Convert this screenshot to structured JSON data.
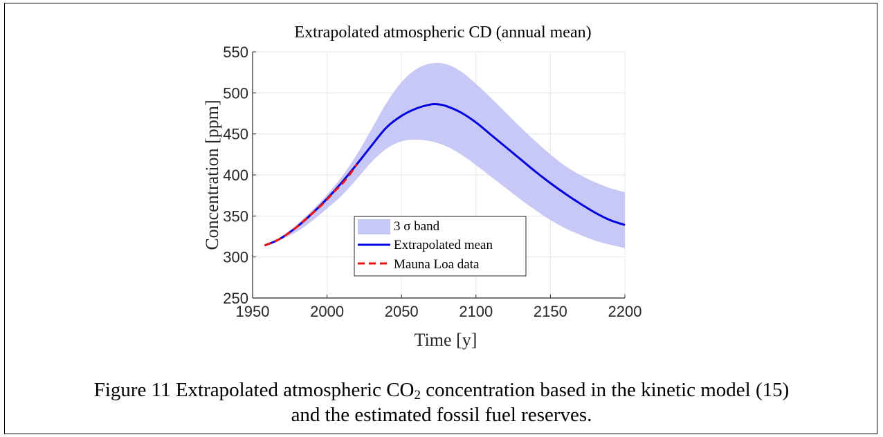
{
  "chart_data": {
    "type": "line",
    "title": "Extrapolated atmospheric CD (annual mean)",
    "xlabel": "Time [y]",
    "ylabel": "Concentration [ppm]",
    "xlim": [
      1950,
      2200
    ],
    "ylim": [
      250,
      550
    ],
    "xticks": [
      1950,
      2000,
      2050,
      2100,
      2150,
      2200
    ],
    "yticks": [
      250,
      300,
      350,
      400,
      450,
      500,
      550
    ],
    "grid": true,
    "legend_position": "bottom-left-center",
    "legend": [
      {
        "label": "3 σ band",
        "style": "band",
        "color": "#c8c8f6"
      },
      {
        "label": "Extrapolated mean",
        "style": "solid",
        "color": "#0000e0"
      },
      {
        "label": "Mauna Loa data",
        "style": "dashed",
        "color": "#ee1111"
      }
    ],
    "series": [
      {
        "name": "Extrapolated mean",
        "x": [
          1958,
          1965,
          1970,
          1980,
          1990,
          2000,
          2010,
          2020,
          2030,
          2040,
          2050,
          2060,
          2070,
          2075,
          2080,
          2090,
          2100,
          2110,
          2120,
          2130,
          2140,
          2150,
          2160,
          2170,
          2180,
          2190,
          2200
        ],
        "y": [
          314,
          319,
          324,
          337,
          353,
          371,
          391,
          413,
          436,
          458,
          472,
          481,
          486,
          486,
          484,
          476,
          464,
          449,
          434,
          419,
          404,
          390,
          377,
          365,
          354,
          345,
          339
        ]
      },
      {
        "name": "Mauna Loa data",
        "x": [
          1958,
          1965,
          1970,
          1975,
          1980,
          1985,
          1990,
          1995,
          2000,
          2005,
          2010,
          2015,
          2020
        ],
        "y": [
          314,
          319,
          324,
          330,
          337,
          345,
          353,
          361,
          370,
          380,
          389,
          400,
          413
        ]
      },
      {
        "name": "3 σ band",
        "x": [
          1958,
          1965,
          1970,
          1980,
          1990,
          2000,
          2010,
          2020,
          2030,
          2040,
          2050,
          2060,
          2070,
          2080,
          2090,
          2100,
          2110,
          2120,
          2130,
          2140,
          2150,
          2160,
          2170,
          2180,
          2190,
          2200
        ],
        "upper": [
          314,
          319,
          325,
          340,
          357,
          376,
          398,
          425,
          456,
          488,
          513,
          529,
          536,
          535,
          526,
          511,
          494,
          476,
          458,
          441,
          425,
          411,
          400,
          391,
          384,
          379
        ],
        "lower": [
          314,
          318,
          322,
          331,
          344,
          359,
          375,
          395,
          416,
          432,
          441,
          443,
          441,
          435,
          425,
          412,
          398,
          384,
          370,
          357,
          345,
          335,
          327,
          320,
          315,
          311
        ]
      }
    ],
    "colors": {
      "band": "#c8c8f6",
      "mean": "#0000e0",
      "data": "#ee1111",
      "grid": "#e6e6e6",
      "axis": "#262626"
    }
  },
  "caption": {
    "prefix": "Figure 11 Extrapolated atmospheric CO",
    "subscript": "2",
    "suffix": " concentration based in the kinetic model (15)",
    "line2": "and the estimated fossil fuel reserves."
  }
}
